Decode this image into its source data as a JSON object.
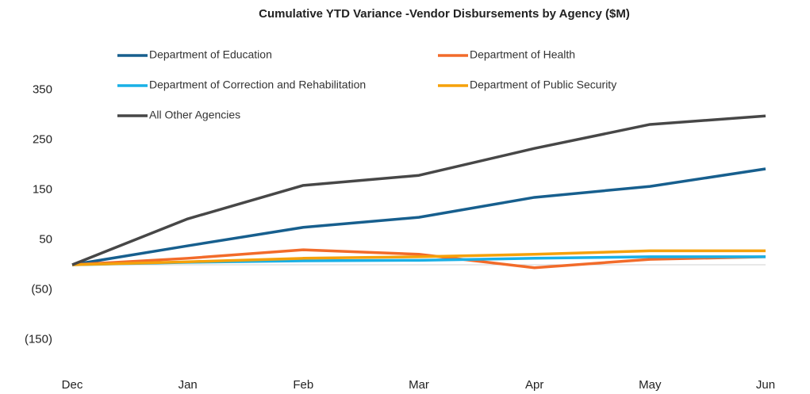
{
  "chart_data": {
    "type": "line",
    "title": "Cumulative YTD Variance -Vendor Disbursements by Agency ($M)",
    "categories": [
      "Dec",
      "Jan",
      "Feb",
      "Mar",
      "Apr",
      "May",
      "Jun"
    ],
    "series": [
      {
        "name": "Department of Education",
        "color": "#175f8e",
        "values": [
          0,
          38,
          75,
          95,
          135,
          157,
          192
        ]
      },
      {
        "name": "Department of Health",
        "color": "#f26b2a",
        "values": [
          0,
          13,
          30,
          21,
          -6,
          11,
          16
        ]
      },
      {
        "name": "Department of Correction and Rehabilitation",
        "color": "#19b0e6",
        "values": [
          0,
          5,
          8,
          9,
          13,
          16,
          16
        ]
      },
      {
        "name": "Department of Public Security",
        "color": "#f5a10a",
        "values": [
          0,
          6,
          13,
          16,
          21,
          28,
          28
        ]
      },
      {
        "name": "All Other Agencies",
        "color": "#474747",
        "values": [
          0,
          92,
          159,
          179,
          233,
          281,
          298
        ]
      }
    ],
    "ylim": [
      -200,
      400
    ],
    "yticks": [
      {
        "value": -150,
        "label": "(150)"
      },
      {
        "value": -50,
        "label": "(50)"
      },
      50,
      150,
      250,
      350
    ],
    "grid": false
  }
}
